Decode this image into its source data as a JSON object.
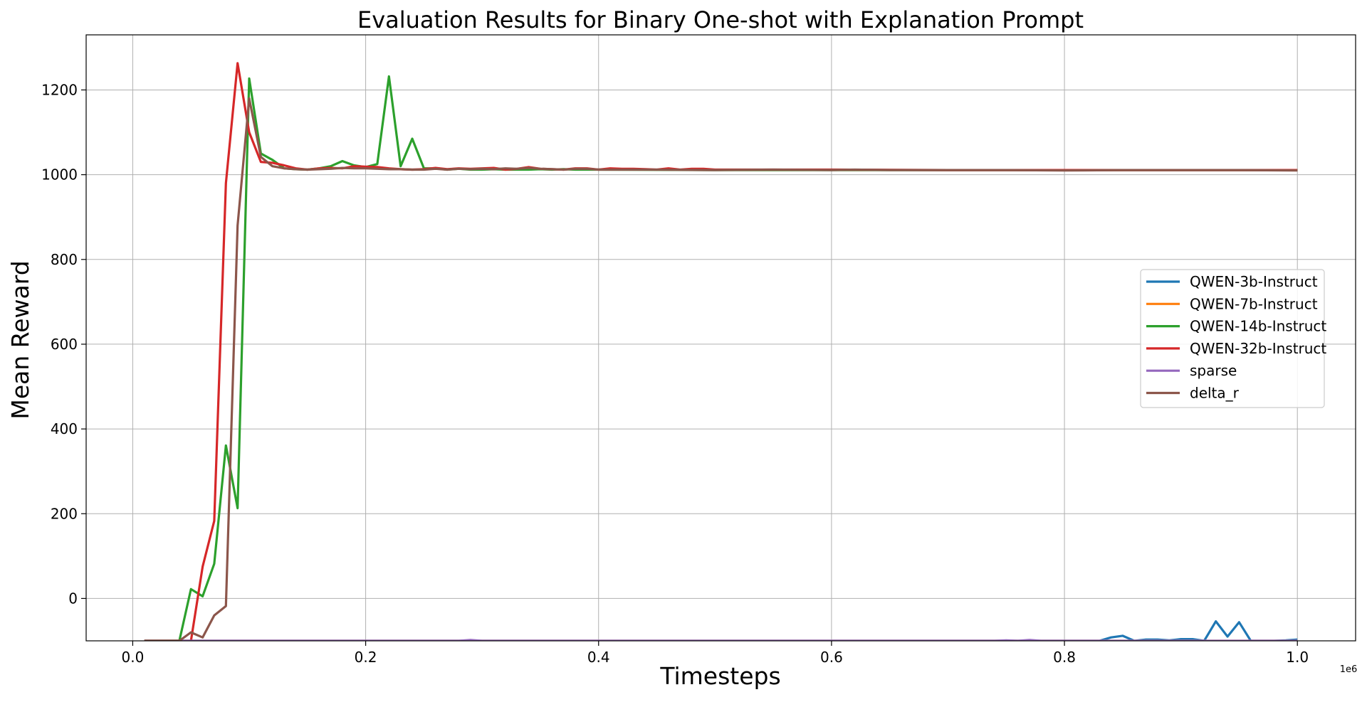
{
  "chart_data": {
    "type": "line",
    "title": "Evaluation Results for Binary One-shot with Explanation Prompt",
    "xlabel": "Timesteps",
    "ylabel": "Mean Reward",
    "x_offset_label": "1e6",
    "xlim": [
      -0.04,
      1.05
    ],
    "ylim": [
      -100,
      1330
    ],
    "xticks": [
      0.0,
      0.2,
      0.4,
      0.6,
      0.8,
      1.0
    ],
    "xtick_labels": [
      "0.0",
      "0.2",
      "0.4",
      "0.6",
      "0.8",
      "1.0"
    ],
    "yticks": [
      0,
      200,
      400,
      600,
      800,
      1000,
      1200
    ],
    "ytick_labels": [
      "0",
      "200",
      "400",
      "600",
      "800",
      "1000",
      "1200"
    ],
    "grid": true,
    "legend_position": "center-right",
    "series": [
      {
        "name": "QWEN-3b-Instruct",
        "color": "#1f77b4",
        "points": [
          [
            0.01,
            -100
          ],
          [
            0.8,
            -100
          ],
          [
            0.83,
            -100
          ],
          [
            0.84,
            -92
          ],
          [
            0.85,
            -88
          ],
          [
            0.86,
            -100
          ],
          [
            0.87,
            -97
          ],
          [
            0.88,
            -97
          ],
          [
            0.89,
            -99
          ],
          [
            0.9,
            -96
          ],
          [
            0.91,
            -96
          ],
          [
            0.92,
            -100
          ],
          [
            0.93,
            -54
          ],
          [
            0.94,
            -90
          ],
          [
            0.95,
            -56
          ],
          [
            0.96,
            -100
          ],
          [
            0.97,
            -100
          ],
          [
            0.98,
            -100
          ],
          [
            0.99,
            -99
          ],
          [
            1.0,
            -97
          ]
        ]
      },
      {
        "name": "QWEN-7b-Instruct",
        "color": "#ff7f0e",
        "points": [
          [
            0.01,
            -100
          ],
          [
            0.5,
            -100
          ],
          [
            1.0,
            -100
          ]
        ]
      },
      {
        "name": "QWEN-14b-Instruct",
        "color": "#2ca02c",
        "points": [
          [
            0.01,
            -100
          ],
          [
            0.04,
            -100
          ],
          [
            0.05,
            22
          ],
          [
            0.06,
            5
          ],
          [
            0.07,
            82
          ],
          [
            0.08,
            361
          ],
          [
            0.09,
            213
          ],
          [
            0.1,
            1227
          ],
          [
            0.11,
            1050
          ],
          [
            0.12,
            1035
          ],
          [
            0.13,
            1015
          ],
          [
            0.14,
            1013
          ],
          [
            0.15,
            1012
          ],
          [
            0.16,
            1015
          ],
          [
            0.17,
            1020
          ],
          [
            0.18,
            1032
          ],
          [
            0.19,
            1022
          ],
          [
            0.2,
            1018
          ],
          [
            0.21,
            1025
          ],
          [
            0.22,
            1232
          ],
          [
            0.23,
            1020
          ],
          [
            0.24,
            1085
          ],
          [
            0.25,
            1015
          ],
          [
            0.26,
            1015
          ],
          [
            0.27,
            1012
          ],
          [
            0.28,
            1014
          ],
          [
            0.29,
            1012
          ],
          [
            0.3,
            1012
          ],
          [
            0.31,
            1013
          ],
          [
            0.32,
            1012
          ],
          [
            0.33,
            1012
          ],
          [
            0.34,
            1012
          ],
          [
            0.35,
            1013
          ],
          [
            0.36,
            1012
          ],
          [
            0.37,
            1013
          ],
          [
            0.38,
            1012
          ],
          [
            0.39,
            1012
          ],
          [
            0.4,
            1012
          ],
          [
            0.5,
            1011
          ],
          [
            0.6,
            1011
          ],
          [
            0.7,
            1011
          ],
          [
            0.8,
            1011
          ],
          [
            0.9,
            1011
          ],
          [
            1.0,
            1011
          ]
        ]
      },
      {
        "name": "QWEN-32b-Instruct",
        "color": "#d62728",
        "points": [
          [
            0.01,
            -100
          ],
          [
            0.05,
            -100
          ],
          [
            0.06,
            75
          ],
          [
            0.07,
            183
          ],
          [
            0.08,
            980
          ],
          [
            0.09,
            1263
          ],
          [
            0.1,
            1100
          ],
          [
            0.11,
            1030
          ],
          [
            0.12,
            1028
          ],
          [
            0.13,
            1022
          ],
          [
            0.14,
            1015
          ],
          [
            0.15,
            1012
          ],
          [
            0.16,
            1015
          ],
          [
            0.17,
            1016
          ],
          [
            0.18,
            1015
          ],
          [
            0.19,
            1020
          ],
          [
            0.2,
            1019
          ],
          [
            0.21,
            1018
          ],
          [
            0.22,
            1015
          ],
          [
            0.23,
            1013
          ],
          [
            0.24,
            1012
          ],
          [
            0.25,
            1013
          ],
          [
            0.26,
            1016
          ],
          [
            0.27,
            1013
          ],
          [
            0.28,
            1015
          ],
          [
            0.29,
            1014
          ],
          [
            0.3,
            1015
          ],
          [
            0.31,
            1016
          ],
          [
            0.32,
            1012
          ],
          [
            0.33,
            1014
          ],
          [
            0.34,
            1018
          ],
          [
            0.35,
            1014
          ],
          [
            0.36,
            1013
          ],
          [
            0.37,
            1012
          ],
          [
            0.38,
            1015
          ],
          [
            0.39,
            1015
          ],
          [
            0.4,
            1012
          ],
          [
            0.41,
            1015
          ],
          [
            0.42,
            1014
          ],
          [
            0.43,
            1014
          ],
          [
            0.44,
            1013
          ],
          [
            0.45,
            1012
          ],
          [
            0.46,
            1015
          ],
          [
            0.47,
            1012
          ],
          [
            0.48,
            1014
          ],
          [
            0.49,
            1014
          ],
          [
            0.5,
            1012
          ],
          [
            0.6,
            1012
          ],
          [
            0.7,
            1011
          ],
          [
            0.8,
            1011
          ],
          [
            0.9,
            1011
          ],
          [
            1.0,
            1011
          ]
        ]
      },
      {
        "name": "sparse",
        "color": "#9467bd",
        "points": [
          [
            0.01,
            -100
          ],
          [
            0.28,
            -100
          ],
          [
            0.29,
            -98
          ],
          [
            0.3,
            -100
          ],
          [
            0.5,
            -100
          ],
          [
            0.74,
            -100
          ],
          [
            0.75,
            -99
          ],
          [
            0.76,
            -100
          ],
          [
            0.77,
            -98
          ],
          [
            0.78,
            -100
          ],
          [
            1.0,
            -100
          ]
        ]
      },
      {
        "name": "delta_r",
        "color": "#8c564b",
        "points": [
          [
            0.01,
            -100
          ],
          [
            0.04,
            -100
          ],
          [
            0.05,
            -80
          ],
          [
            0.06,
            -92
          ],
          [
            0.07,
            -40
          ],
          [
            0.08,
            -18
          ],
          [
            0.09,
            880
          ],
          [
            0.1,
            1180
          ],
          [
            0.11,
            1042
          ],
          [
            0.12,
            1020
          ],
          [
            0.13,
            1015
          ],
          [
            0.14,
            1013
          ],
          [
            0.15,
            1012
          ],
          [
            0.16,
            1013
          ],
          [
            0.17,
            1014
          ],
          [
            0.18,
            1016
          ],
          [
            0.19,
            1015
          ],
          [
            0.2,
            1015
          ],
          [
            0.21,
            1014
          ],
          [
            0.22,
            1013
          ],
          [
            0.23,
            1013
          ],
          [
            0.24,
            1012
          ],
          [
            0.25,
            1012
          ],
          [
            0.26,
            1014
          ],
          [
            0.27,
            1012
          ],
          [
            0.28,
            1014
          ],
          [
            0.29,
            1013
          ],
          [
            0.3,
            1014
          ],
          [
            0.31,
            1013
          ],
          [
            0.32,
            1015
          ],
          [
            0.33,
            1014
          ],
          [
            0.34,
            1016
          ],
          [
            0.35,
            1014
          ],
          [
            0.36,
            1013
          ],
          [
            0.37,
            1012
          ],
          [
            0.38,
            1014
          ],
          [
            0.39,
            1014
          ],
          [
            0.4,
            1012
          ],
          [
            0.45,
            1012
          ],
          [
            0.5,
            1011
          ],
          [
            0.55,
            1012
          ],
          [
            0.6,
            1011
          ],
          [
            0.62,
            1012
          ],
          [
            0.65,
            1011
          ],
          [
            0.7,
            1011
          ],
          [
            0.75,
            1011
          ],
          [
            0.8,
            1010
          ],
          [
            0.85,
            1011
          ],
          [
            0.9,
            1011
          ],
          [
            0.95,
            1011
          ],
          [
            1.0,
            1010
          ]
        ]
      }
    ]
  }
}
